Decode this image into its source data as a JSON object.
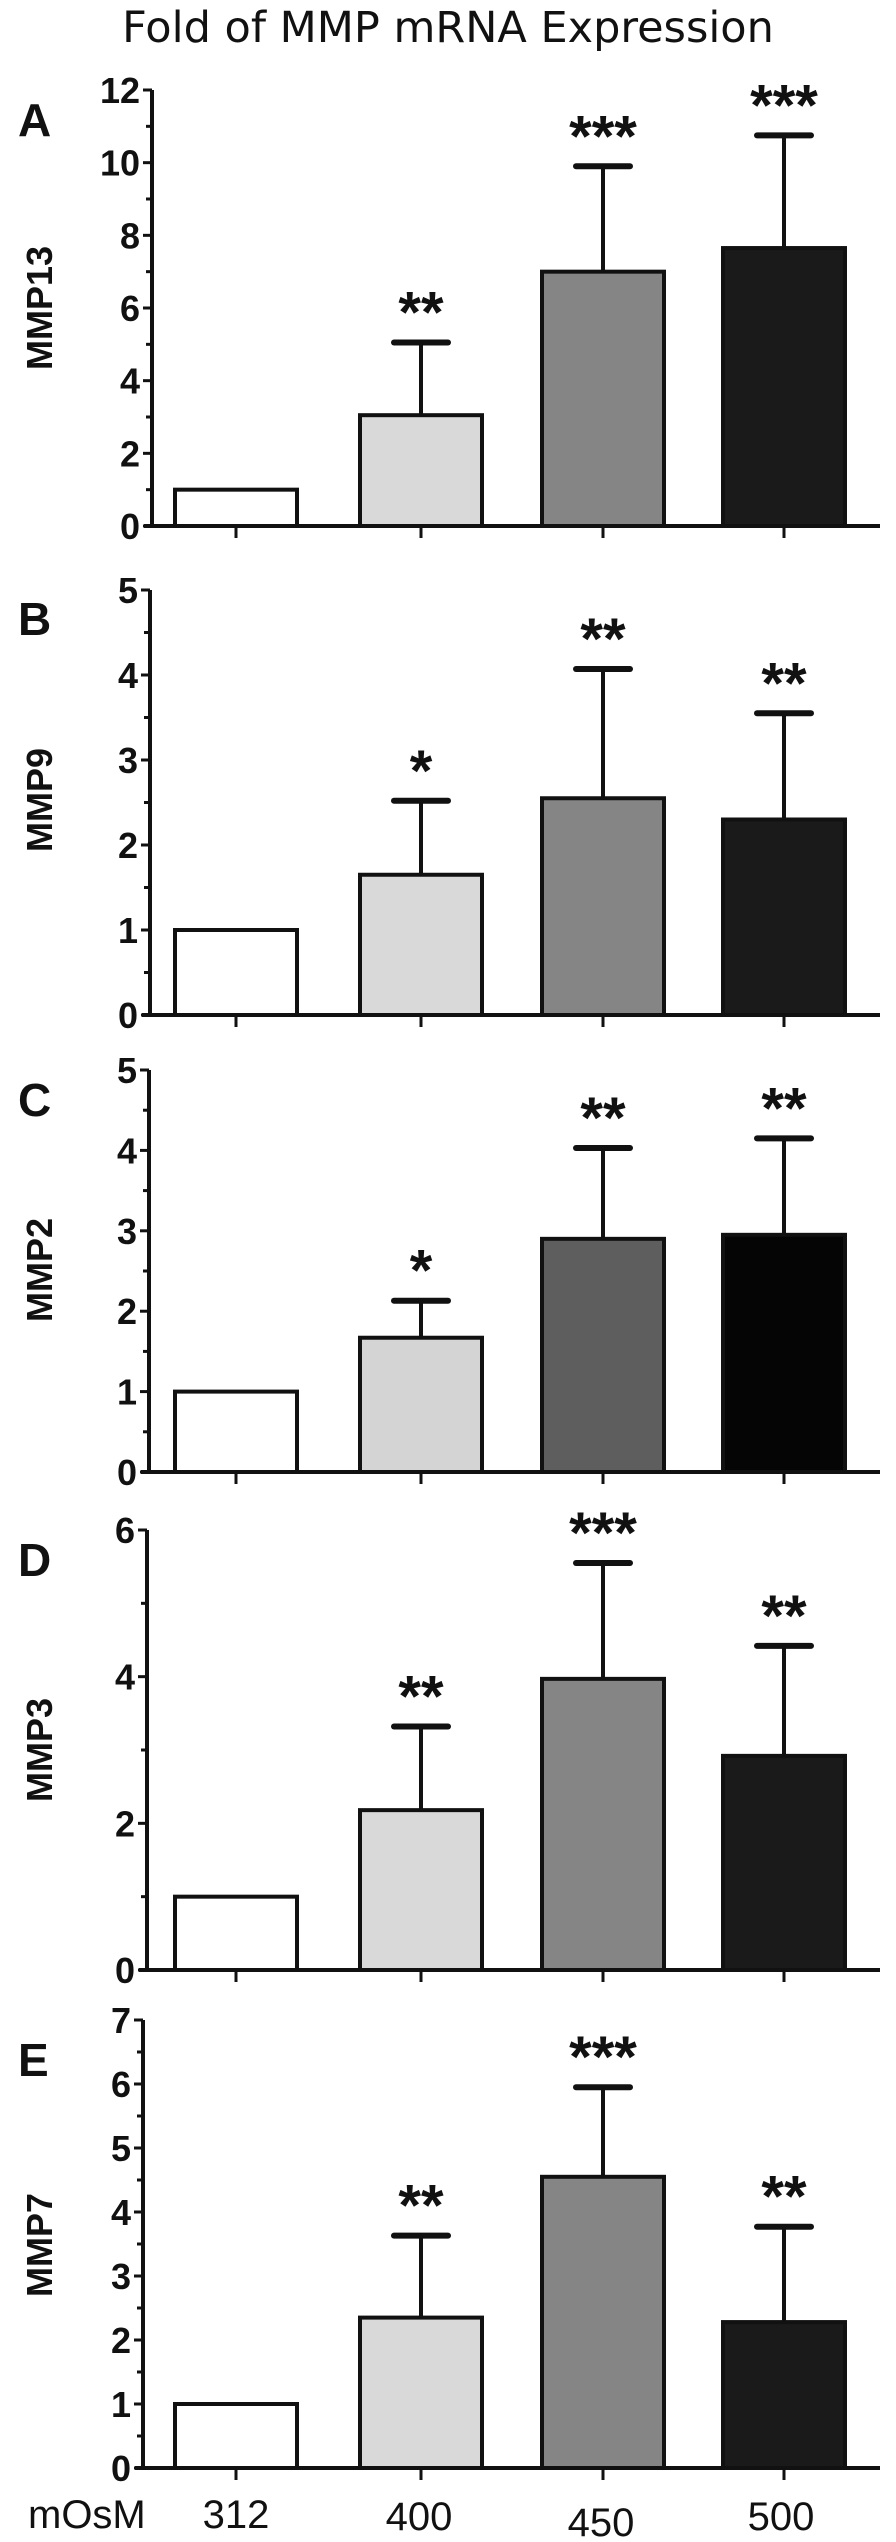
{
  "title": "Fold of MMP mRNA Expression",
  "chart_data": [
    {
      "type": "bar",
      "panel": "A",
      "ylabel": "MMP13",
      "categories": [
        "312",
        "400",
        "450",
        "500"
      ],
      "xlabel": "mOsM",
      "values": [
        1.0,
        3.05,
        7.0,
        7.65
      ],
      "error_upper": [
        1.0,
        5.05,
        9.9,
        10.75
      ],
      "significance": [
        "",
        "**",
        "***",
        "***"
      ],
      "ylim": [
        0,
        12
      ],
      "yticks": [
        0,
        2,
        4,
        6,
        8,
        10,
        12
      ],
      "colors": [
        "#ffffff",
        "#d9d9d9",
        "#858585",
        "#1a1a1a"
      ]
    },
    {
      "type": "bar",
      "panel": "B",
      "ylabel": "MMP9",
      "categories": [
        "312",
        "400",
        "450",
        "500"
      ],
      "xlabel": "mOsM",
      "values": [
        1.0,
        1.65,
        2.55,
        2.3
      ],
      "error_upper": [
        1.0,
        2.52,
        4.07,
        3.55
      ],
      "significance": [
        "",
        "*",
        "**",
        "**"
      ],
      "ylim": [
        0,
        5
      ],
      "yticks": [
        0,
        1,
        2,
        3,
        4,
        5
      ],
      "colors": [
        "#ffffff",
        "#d9d9d9",
        "#858585",
        "#1a1a1a"
      ]
    },
    {
      "type": "bar",
      "panel": "C",
      "ylabel": "MMP2",
      "categories": [
        "312",
        "400",
        "450",
        "500"
      ],
      "xlabel": "mOsM",
      "values": [
        1.0,
        1.67,
        2.9,
        2.95
      ],
      "error_upper": [
        1.0,
        2.13,
        4.03,
        4.15
      ],
      "significance": [
        "",
        "*",
        "**",
        "**"
      ],
      "ylim": [
        0,
        5
      ],
      "yticks": [
        0,
        1,
        2,
        3,
        4,
        5
      ],
      "colors": [
        "#ffffff",
        "#d4d4d4",
        "#5e5e5e",
        "#050505"
      ]
    },
    {
      "type": "bar",
      "panel": "D",
      "ylabel": "MMP3",
      "categories": [
        "312",
        "400",
        "450",
        "500"
      ],
      "xlabel": "mOsM",
      "values": [
        1.0,
        2.18,
        3.97,
        2.92
      ],
      "error_upper": [
        1.0,
        3.32,
        5.55,
        4.42
      ],
      "significance": [
        "",
        "**",
        "***",
        "**"
      ],
      "ylim": [
        0,
        6
      ],
      "yticks": [
        0,
        2,
        4,
        6
      ],
      "colors": [
        "#ffffff",
        "#d9d9d9",
        "#858585",
        "#1a1a1a"
      ]
    },
    {
      "type": "bar",
      "panel": "E",
      "ylabel": "MMP7",
      "categories": [
        "312",
        "400",
        "450",
        "500"
      ],
      "xlabel": "mOsM",
      "values": [
        1.0,
        2.35,
        4.55,
        2.28
      ],
      "error_upper": [
        1.0,
        3.63,
        5.95,
        3.77
      ],
      "significance": [
        "",
        "**",
        "***",
        "**"
      ],
      "ylim": [
        0,
        7
      ],
      "yticks": [
        0,
        1,
        2,
        3,
        4,
        5,
        6,
        7
      ],
      "colors": [
        "#ffffff",
        "#d9d9d9",
        "#858585",
        "#1a1a1a"
      ]
    }
  ],
  "x_axis": {
    "label": "mOsM",
    "categories": [
      "312",
      "400",
      "450",
      "500"
    ]
  }
}
